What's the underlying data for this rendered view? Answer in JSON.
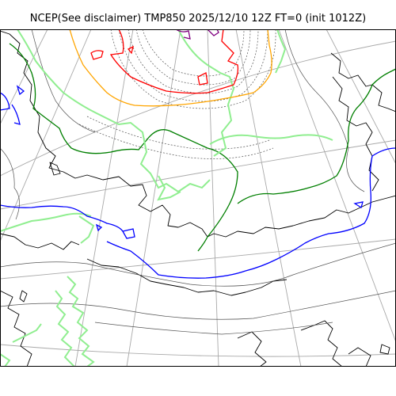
{
  "title": "NCEP(See disclaimer) TMP850 2025/12/10 12Z FT=0 (init 1012Z)",
  "colors": {
    "background": "#ffffff",
    "coastline": "#000000",
    "graticule": "#a9a9a9",
    "isotherm_thin": "#555555",
    "isotherm_green": "#007f00",
    "isotherm_lightgreen": "#90ee90",
    "isotherm_blue": "#0000ff",
    "isotherm_orange": "#ffa500",
    "isotherm_red": "#ff0000",
    "isotherm_purple": "#800080"
  },
  "map": {
    "projection": "polar-stereographic",
    "graticule": true,
    "variable": "temperature-850hPa"
  }
}
